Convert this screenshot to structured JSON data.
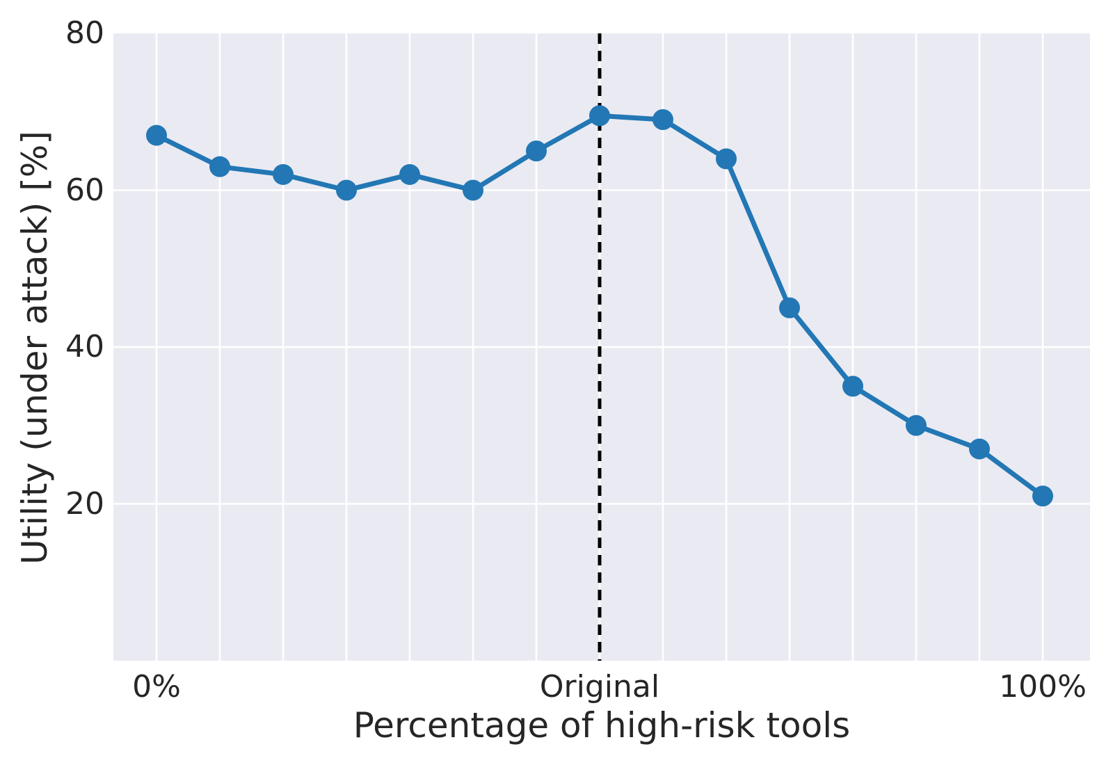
{
  "figure": {
    "background_color": "#ffffff",
    "plot_background_color": "#eaeaf2",
    "grid_color": "#ffffff",
    "text_color": "#262626",
    "series_color": "#2277b4",
    "vline_color": "#000000"
  },
  "chart_data": {
    "type": "line",
    "title": "",
    "xlabel": "Percentage of high-risk tools",
    "ylabel": "Utility (under attack) [%]",
    "series": [
      {
        "name": "utility-under-attack",
        "x_percent": [
          0,
          7.1,
          14.3,
          21.4,
          28.6,
          35.7,
          42.9,
          50,
          57.1,
          64.3,
          71.4,
          78.6,
          85.7,
          92.9,
          100
        ],
        "values": [
          67,
          63,
          62,
          60,
          62,
          60,
          65,
          69.5,
          69,
          64,
          45,
          35,
          30,
          27,
          21
        ]
      }
    ],
    "x_tick_labels": [
      {
        "index": 0,
        "label": "0%"
      },
      {
        "index": 7,
        "label": "Original"
      },
      {
        "index": 14,
        "label": "100%"
      }
    ],
    "y_ticks": [
      20,
      40,
      60,
      80
    ],
    "ylim": [
      0,
      80
    ],
    "grid": true,
    "legend_position": "none",
    "vline": {
      "index": 7,
      "style": "dashed",
      "label": "Original"
    }
  }
}
